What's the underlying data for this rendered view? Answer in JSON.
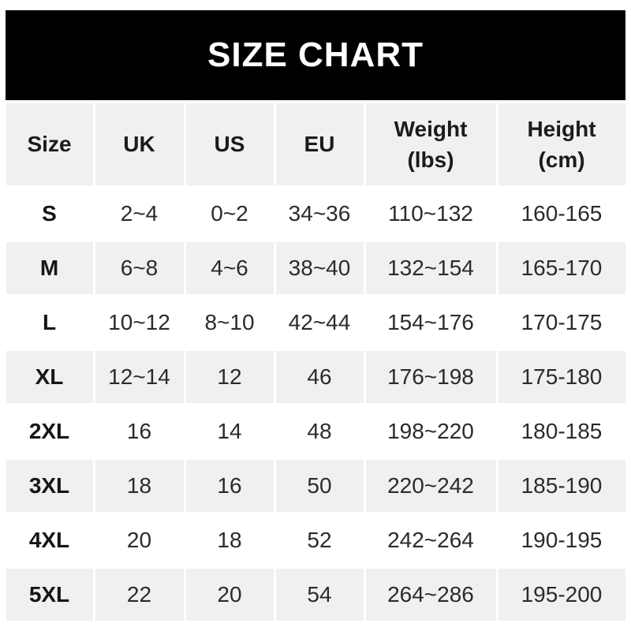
{
  "banner": {
    "title": "SIZE CHART"
  },
  "ui": {
    "columns": [
      {
        "line1": "Size",
        "line2": ""
      },
      {
        "line1": "UK",
        "line2": ""
      },
      {
        "line1": "US",
        "line2": ""
      },
      {
        "line1": "EU",
        "line2": ""
      },
      {
        "line1": "Weight",
        "line2": "(lbs)"
      },
      {
        "line1": "Height",
        "line2": "(cm)"
      }
    ]
  },
  "chart_data": {
    "type": "table",
    "title": "SIZE CHART",
    "columns": [
      "Size",
      "UK",
      "US",
      "EU",
      "Weight (lbs)",
      "Height (cm)"
    ],
    "rows": [
      [
        "S",
        "2~4",
        "0~2",
        "34~36",
        "110~132",
        "160-165"
      ],
      [
        "M",
        "6~8",
        "4~6",
        "38~40",
        "132~154",
        "165-170"
      ],
      [
        "L",
        "10~12",
        "8~10",
        "42~44",
        "154~176",
        "170-175"
      ],
      [
        "XL",
        "12~14",
        "12",
        "46",
        "176~198",
        "175-180"
      ],
      [
        "2XL",
        "16",
        "14",
        "48",
        "198~220",
        "180-185"
      ],
      [
        "3XL",
        "18",
        "16",
        "50",
        "220~242",
        "185-190"
      ],
      [
        "4XL",
        "20",
        "18",
        "52",
        "242~264",
        "190-195"
      ],
      [
        "5XL",
        "22",
        "20",
        "54",
        "264~286",
        "195-200"
      ]
    ]
  },
  "colors": {
    "banner_bg": "#000000",
    "banner_text": "#ffffff",
    "stripe_bg": "#f0f0f0",
    "row_bg": "#ffffff",
    "header_text": "#1b1b1b",
    "value_text": "#2b2b2b"
  }
}
